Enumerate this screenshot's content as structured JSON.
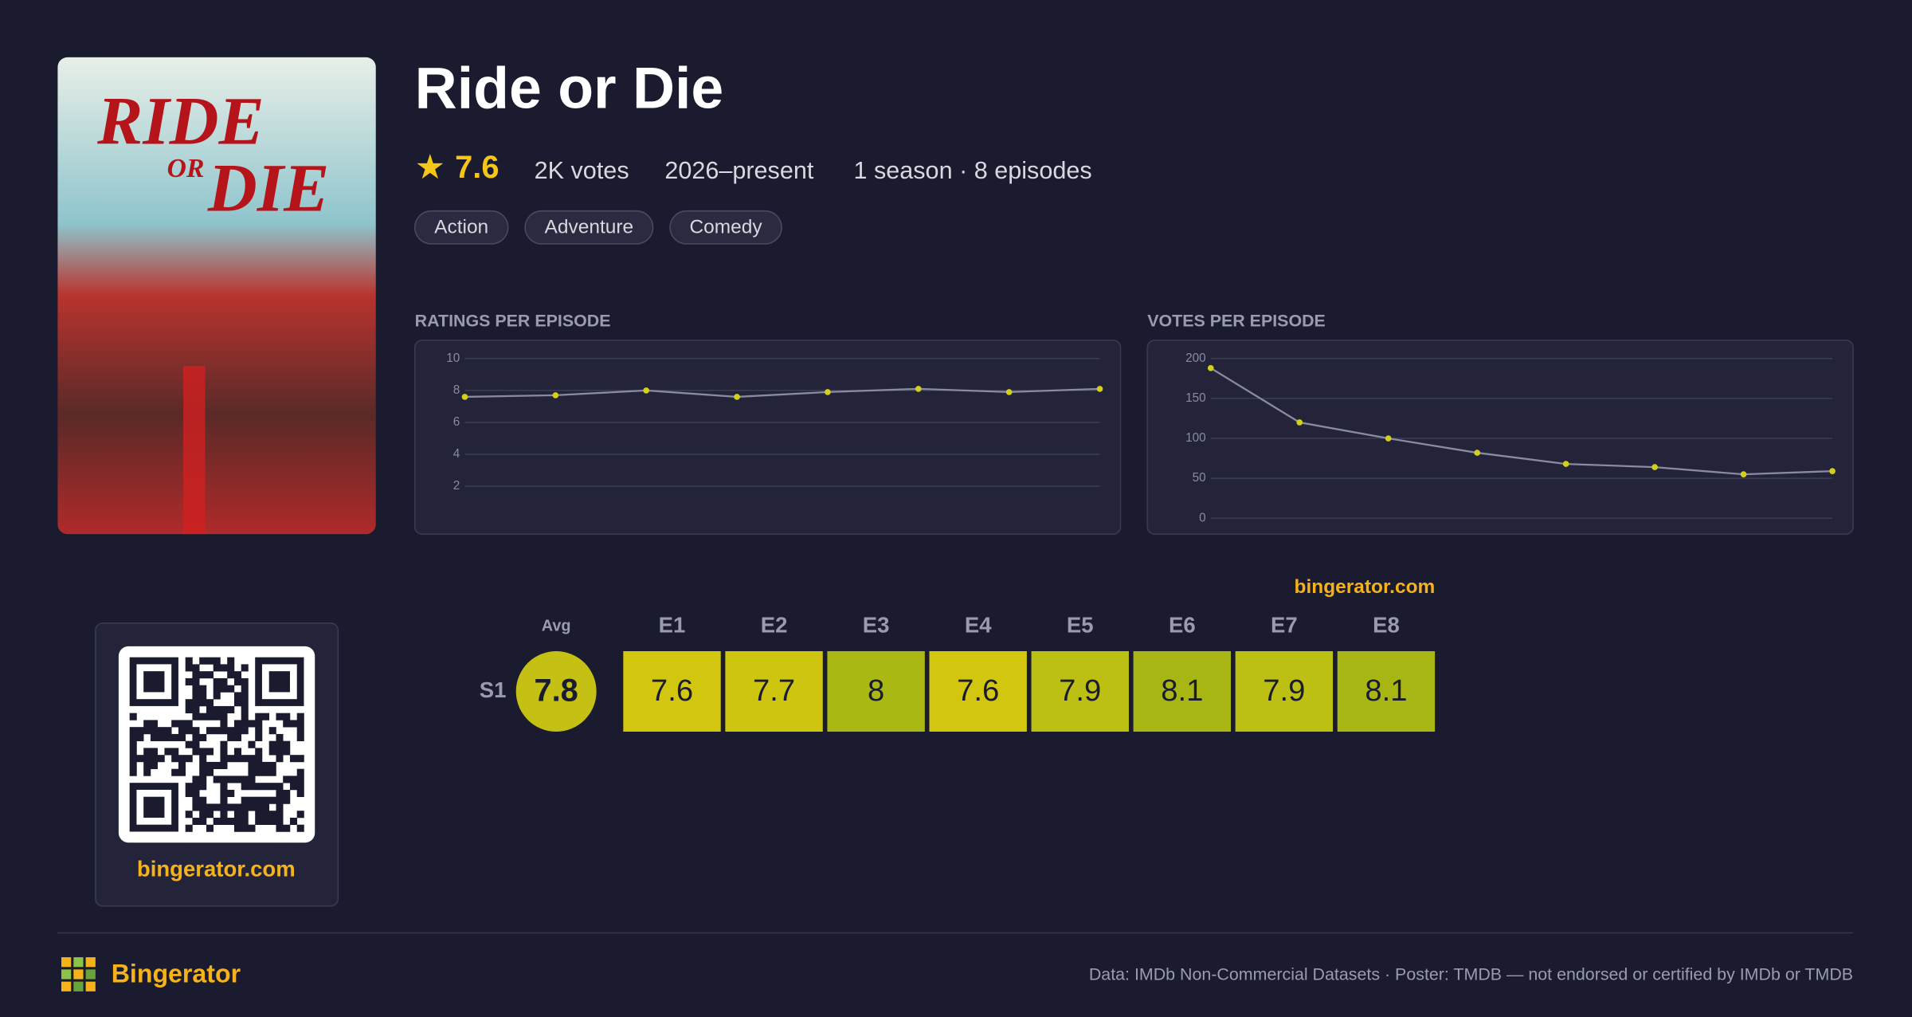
{
  "header": {
    "title": "Ride or Die",
    "rating": 7.6,
    "votes": "2K votes",
    "years": "2026–present",
    "seasons": "1 season · 8 episodes",
    "genres": [
      "Action",
      "Adventure",
      "Comedy"
    ]
  },
  "poster": {
    "lines": [
      "RIDE",
      "OR",
      "DIE"
    ]
  },
  "chart_data": [
    {
      "type": "line",
      "title": "RATINGS PER EPISODE",
      "values": [
        7.6,
        7.7,
        8.0,
        7.6,
        7.9,
        8.1,
        7.9,
        8.1
      ],
      "color": "#d4cf1a",
      "ylim": [
        0,
        10
      ],
      "yticks": [
        2,
        4,
        6,
        8,
        10
      ],
      "grid": true
    },
    {
      "type": "line",
      "title": "VOTES PER EPISODE",
      "values": [
        188,
        120,
        100,
        82,
        68,
        64,
        55,
        59
      ],
      "color": "#d4cf1a",
      "ylim": [
        0,
        200
      ],
      "yticks": [
        0,
        50,
        100,
        150,
        200
      ],
      "grid": true
    }
  ],
  "heatmap": {
    "watermark": "bingerator.com",
    "avg_label": "Avg",
    "columns": [
      "E1",
      "E2",
      "E3",
      "E4",
      "E5",
      "E6",
      "E7",
      "E8"
    ],
    "rows": [
      {
        "label": "S1",
        "avg": 7.8,
        "avg_color": "#c4c014",
        "values": [
          7.6,
          7.7,
          8.0,
          7.6,
          7.9,
          8.1,
          7.9,
          8.1
        ],
        "colors": [
          "#d2c70e",
          "#cdc50f",
          "#aab813",
          "#d2c70e",
          "#bcc013",
          "#a8b614",
          "#bcc013",
          "#a8b614"
        ]
      }
    ]
  },
  "qr": {
    "site": "bingerator.com"
  },
  "footer": {
    "brand": "Bingerator",
    "disclaimer": "Data: IMDb Non-Commercial Datasets · Poster: TMDB — not endorsed or certified by IMDb or TMDB"
  }
}
